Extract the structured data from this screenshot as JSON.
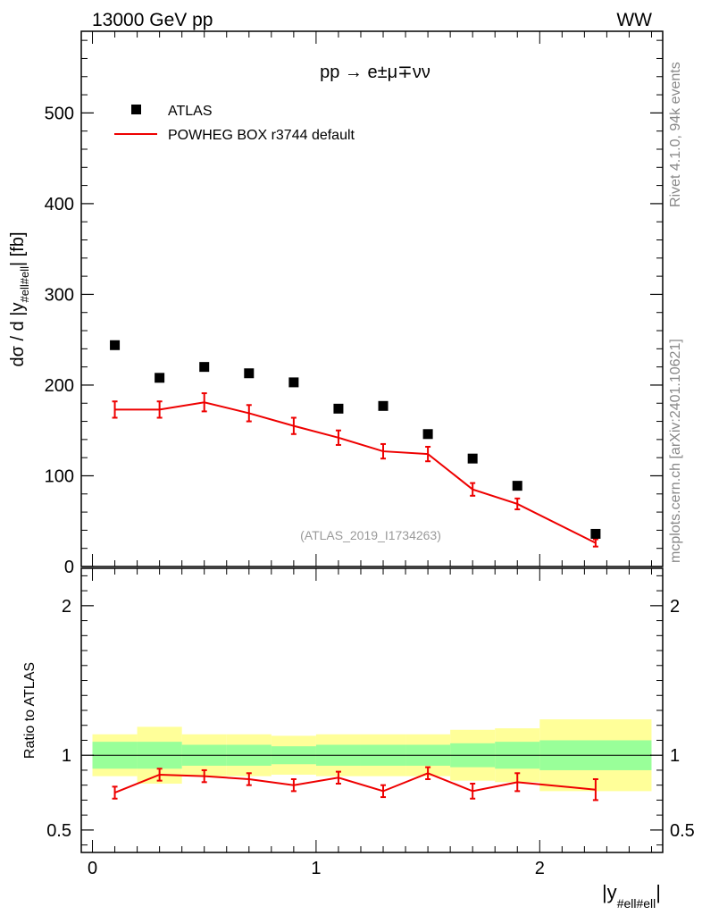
{
  "header": {
    "left_label": "13000 GeV pp",
    "right_label": "WW"
  },
  "side": {
    "rivet_label": "Rivet 4.1.0,  94k events",
    "mcplots_label": "mcplots.cern.ch [arXiv:2401.10621]"
  },
  "chart_data": [
    {
      "type": "scatter",
      "panel": "main",
      "title": "pp → e±μ∓νν",
      "analysis_label": "(ATLAS_2019_I1734263)",
      "ylabel_parts": [
        "dσ / d |y",
        "#ell#ell",
        "| [fb]"
      ],
      "ylim": [
        0,
        590
      ],
      "xlim": [
        -0.05,
        2.55
      ],
      "yticks": [
        0,
        100,
        200,
        300,
        400,
        500
      ],
      "ytick_labels": [
        "0",
        "100",
        "200",
        "300",
        "400",
        "500"
      ],
      "legend_position": "top-left",
      "series": [
        {
          "name": "ATLAS",
          "style": "markers",
          "color": "#000000",
          "x": [
            0.1,
            0.3,
            0.5,
            0.7,
            0.9,
            1.1,
            1.3,
            1.5,
            1.7,
            1.9,
            2.25
          ],
          "values": [
            244,
            208,
            220,
            213,
            203,
            174,
            177,
            146,
            119,
            89,
            36
          ]
        },
        {
          "name": "POWHEG BOX r3744 default",
          "style": "line",
          "color": "#ee0000",
          "x": [
            0.1,
            0.3,
            0.5,
            0.7,
            0.9,
            1.1,
            1.3,
            1.5,
            1.7,
            1.9,
            2.25
          ],
          "values": [
            173,
            173,
            181,
            169,
            155,
            142,
            127,
            124,
            85,
            69,
            26
          ],
          "errors": [
            9,
            9,
            10,
            9,
            9,
            8,
            8,
            8,
            7,
            6,
            4
          ]
        }
      ]
    },
    {
      "type": "line",
      "panel": "ratio",
      "ylabel": "Ratio to ATLAS",
      "xlabel_parts": [
        "|y",
        "#ell#ell",
        "|"
      ],
      "ylim": [
        0.35,
        2.25
      ],
      "xlim": [
        -0.05,
        2.55
      ],
      "yticks": [
        0.5,
        1,
        2
      ],
      "ytick_labels": [
        "0.5",
        "1",
        "2"
      ],
      "xticks": [
        0,
        1,
        2
      ],
      "xtick_labels": [
        "0",
        "1",
        "2"
      ],
      "bands": {
        "bins": [
          0.0,
          0.2,
          0.4,
          0.6,
          0.8,
          1.0,
          1.2,
          1.4,
          1.6,
          1.8,
          2.0,
          2.5
        ],
        "stat_low": [
          0.91,
          0.91,
          0.93,
          0.93,
          0.94,
          0.93,
          0.93,
          0.93,
          0.92,
          0.91,
          0.9
        ],
        "stat_high": [
          1.09,
          1.09,
          1.07,
          1.07,
          1.06,
          1.07,
          1.07,
          1.07,
          1.08,
          1.09,
          1.1
        ],
        "total_low": [
          0.86,
          0.81,
          0.86,
          0.86,
          0.87,
          0.86,
          0.86,
          0.86,
          0.83,
          0.82,
          0.76
        ],
        "total_high": [
          1.14,
          1.19,
          1.14,
          1.14,
          1.13,
          1.14,
          1.14,
          1.14,
          1.17,
          1.18,
          1.24
        ],
        "stat_color": "#99ff99",
        "total_color": "#ffff99"
      },
      "series": [
        {
          "name": "POWHEG BOX r3744 default",
          "color": "#ee0000",
          "x": [
            0.1,
            0.3,
            0.5,
            0.7,
            0.9,
            1.1,
            1.3,
            1.5,
            1.7,
            1.9,
            2.25
          ],
          "values": [
            0.75,
            0.87,
            0.86,
            0.84,
            0.8,
            0.85,
            0.76,
            0.88,
            0.76,
            0.82,
            0.77
          ],
          "errors": [
            0.04,
            0.04,
            0.04,
            0.04,
            0.04,
            0.04,
            0.04,
            0.04,
            0.05,
            0.06,
            0.07
          ]
        }
      ]
    }
  ]
}
